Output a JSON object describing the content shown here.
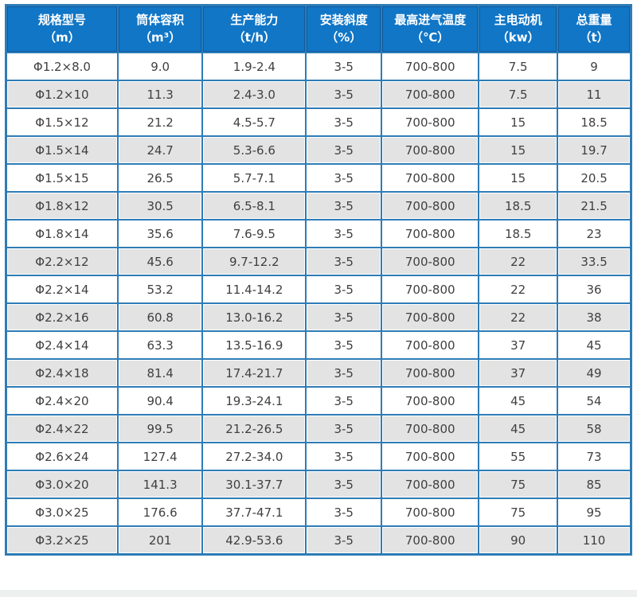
{
  "chart_data": {
    "type": "table",
    "columns": [
      {
        "label": "规格型号",
        "unit": "（m）"
      },
      {
        "label": "筒体容积",
        "unit": "（m³）"
      },
      {
        "label": "生产能力",
        "unit": "（t/h）"
      },
      {
        "label": "安装斜度",
        "unit": "（%）"
      },
      {
        "label": "最高进气温度",
        "unit": "（℃）"
      },
      {
        "label": "主电动机",
        "unit": "（kw）"
      },
      {
        "label": "总重量",
        "unit": "（t）"
      }
    ],
    "rows": [
      [
        "Φ1.2×8.0",
        "9.0",
        "1.9-2.4",
        "3-5",
        "700-800",
        "7.5",
        "9"
      ],
      [
        "Φ1.2×10",
        "11.3",
        "2.4-3.0",
        "3-5",
        "700-800",
        "7.5",
        "11"
      ],
      [
        "Φ1.5×12",
        "21.2",
        "4.5-5.7",
        "3-5",
        "700-800",
        "15",
        "18.5"
      ],
      [
        "Φ1.5×14",
        "24.7",
        "5.3-6.6",
        "3-5",
        "700-800",
        "15",
        "19.7"
      ],
      [
        "Φ1.5×15",
        "26.5",
        "5.7-7.1",
        "3-5",
        "700-800",
        "15",
        "20.5"
      ],
      [
        "Φ1.8×12",
        "30.5",
        "6.5-8.1",
        "3-5",
        "700-800",
        "18.5",
        "21.5"
      ],
      [
        "Φ1.8×14",
        "35.6",
        "7.6-9.5",
        "3-5",
        "700-800",
        "18.5",
        "23"
      ],
      [
        "Φ2.2×12",
        "45.6",
        "9.7-12.2",
        "3-5",
        "700-800",
        "22",
        "33.5"
      ],
      [
        "Φ2.2×14",
        "53.2",
        "11.4-14.2",
        "3-5",
        "700-800",
        "22",
        "36"
      ],
      [
        "Φ2.2×16",
        "60.8",
        "13.0-16.2",
        "3-5",
        "700-800",
        "22",
        "38"
      ],
      [
        "Φ2.4×14",
        "63.3",
        "13.5-16.9",
        "3-5",
        "700-800",
        "37",
        "45"
      ],
      [
        "Φ2.4×18",
        "81.4",
        "17.4-21.7",
        "3-5",
        "700-800",
        "37",
        "49"
      ],
      [
        "Φ2.4×20",
        "90.4",
        "19.3-24.1",
        "3-5",
        "700-800",
        "45",
        "54"
      ],
      [
        "Φ2.4×22",
        "99.5",
        "21.2-26.5",
        "3-5",
        "700-800",
        "45",
        "58"
      ],
      [
        "Φ2.6×24",
        "127.4",
        "27.2-34.0",
        "3-5",
        "700-800",
        "55",
        "73"
      ],
      [
        "Φ3.0×20",
        "141.3",
        "30.1-37.7",
        "3-5",
        "700-800",
        "75",
        "85"
      ],
      [
        "Φ3.0×25",
        "176.6",
        "37.7-47.1",
        "3-5",
        "700-800",
        "75",
        "95"
      ],
      [
        "Φ3.2×25",
        "201",
        "42.9-53.6",
        "3-5",
        "700-800",
        "90",
        "110"
      ]
    ]
  },
  "colors": {
    "header_bg": "#1176c6",
    "header_separator": "#0d5a9e",
    "grid_border": "#2e7cb6",
    "row_bg": "#ffffff",
    "row_alt_bg": "#e3e3e3",
    "header_text": "#ffffff",
    "cell_text": "#404040",
    "page_bottom_strip": "#eef0f0"
  }
}
